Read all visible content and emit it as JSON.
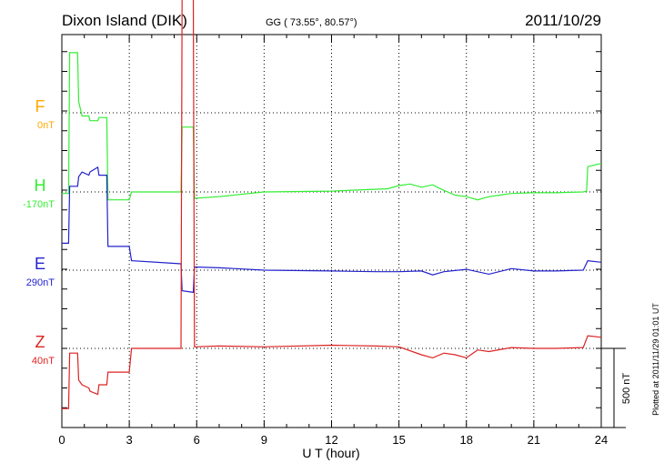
{
  "header": {
    "title": "Dixon Island (DIK)",
    "coords": "GG ( 73.55°,  80.57°)",
    "date": "2011/10/29"
  },
  "side_note": "Plotted at 2011/11/29 01:01 UT",
  "scale_bar_label": "500 nT",
  "chart_data": {
    "type": "line",
    "title": "Dixon Island (DIK)",
    "xlabel": "U T (hour)",
    "ylabel": "",
    "xlim": [
      0,
      24
    ],
    "x_ticks": [
      0,
      3,
      6,
      9,
      12,
      15,
      18,
      21,
      24
    ],
    "x_tick_labels": [
      "0",
      "3",
      "6",
      "9",
      "12",
      "15",
      "18",
      "21",
      "24"
    ],
    "grid": true,
    "scale_bar_nT": 500,
    "series": [
      {
        "name": "F",
        "offset_label": "0nT",
        "color": "#ffaa00",
        "x": [],
        "values": []
      },
      {
        "name": "H",
        "offset_label": "-170nT",
        "color": "#33ee33",
        "x": [
          0.0,
          0.3,
          0.35,
          0.7,
          0.75,
          0.85,
          0.9,
          1.2,
          1.25,
          1.6,
          1.65,
          2.0,
          2.05,
          3.0,
          3.1,
          5.3,
          5.35,
          5.85,
          5.9,
          7.0,
          9.0,
          12.0,
          14.5,
          15.0,
          15.5,
          16.0,
          16.5,
          17.0,
          17.5,
          18.0,
          18.5,
          19.0,
          19.5,
          20.0,
          21.0,
          22.0,
          23.2,
          23.35,
          23.4,
          24.0
        ],
        "values": [
          -10,
          -10,
          880,
          880,
          570,
          510,
          480,
          480,
          450,
          450,
          470,
          470,
          -50,
          -50,
          0,
          0,
          410,
          410,
          -40,
          -30,
          0,
          5,
          20,
          40,
          50,
          30,
          45,
          10,
          -20,
          -30,
          -50,
          -30,
          -20,
          -10,
          -5,
          -5,
          0,
          5,
          160,
          180
        ]
      },
      {
        "name": "E",
        "offset_label": "290nT",
        "color": "#2222cc",
        "x": [
          0.0,
          0.3,
          0.35,
          0.7,
          0.75,
          0.9,
          1.2,
          1.25,
          1.6,
          1.65,
          2.0,
          2.05,
          3.0,
          3.1,
          5.3,
          5.35,
          5.85,
          5.9,
          7.0,
          9.0,
          12.0,
          14.0,
          15.0,
          16.0,
          16.5,
          17.0,
          18.0,
          19.0,
          20.0,
          21.0,
          22.0,
          23.2,
          23.4,
          24.0
        ],
        "values": [
          170,
          170,
          530,
          530,
          590,
          620,
          600,
          620,
          650,
          600,
          600,
          150,
          150,
          60,
          40,
          -130,
          -140,
          20,
          15,
          0,
          -5,
          -10,
          -10,
          -5,
          -30,
          -10,
          5,
          -25,
          10,
          -5,
          -5,
          0,
          60,
          50
        ]
      },
      {
        "name": "Z",
        "offset_label": "40nT",
        "color": "#dd2222",
        "x": [
          0.0,
          0.3,
          0.35,
          0.7,
          0.75,
          0.9,
          1.2,
          1.25,
          1.6,
          1.65,
          2.0,
          2.05,
          3.0,
          3.1,
          5.3,
          5.35,
          5.85,
          5.9,
          7.0,
          9.0,
          12.0,
          14.0,
          15.0,
          16.0,
          16.5,
          17.0,
          17.5,
          18.0,
          18.5,
          19.0,
          20.0,
          21.0,
          22.0,
          23.2,
          23.4,
          24.0
        ],
        "values": [
          -380,
          -380,
          -30,
          -30,
          -200,
          -230,
          -250,
          -270,
          -290,
          -230,
          -230,
          -150,
          -150,
          0,
          0,
          2240,
          2260,
          10,
          15,
          10,
          20,
          15,
          10,
          -40,
          -60,
          -30,
          -40,
          -60,
          -10,
          -20,
          5,
          0,
          0,
          5,
          80,
          70
        ]
      }
    ]
  }
}
